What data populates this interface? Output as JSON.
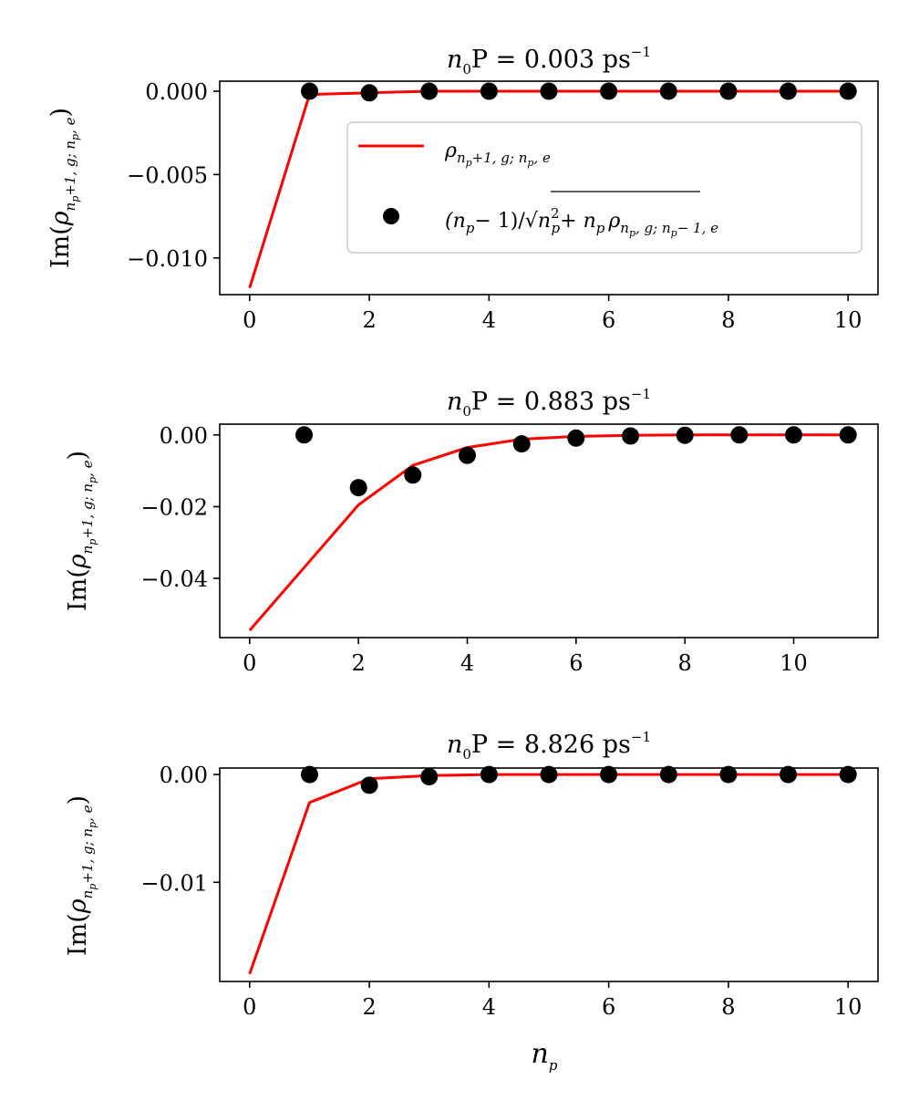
{
  "colors": {
    "line": "#ff0000",
    "marker": "#000000",
    "axis": "#000000",
    "legend_border": "#cccccc"
  },
  "x_label": {
    "base": "n",
    "sub": "p"
  },
  "y_label": {
    "lead": "Im(",
    "rho": "ρ",
    "sub_a": "n",
    "sub_b": "p",
    "sub_c": "+1, g; n",
    "sub_d": "p",
    "sub_e": ", e",
    "close": ")"
  },
  "legend": {
    "line_entry": {
      "rho": "ρ",
      "sub_a": "n",
      "sub_b": "p",
      "sub_c": "+1, g; n",
      "sub_d": "p",
      "sub_e": ", e"
    },
    "marker_entry": {
      "open": "(n",
      "sub_p1": "p",
      "mid": "− 1)/√",
      "rad_n": "n",
      "rad_sup": "2",
      "rad_sub": "p",
      "rad_plus": "+ n",
      "rad_sub2": "p",
      "rho": "ρ",
      "sub_a": "n",
      "sub_b": "p",
      "sub_c": ", g; n",
      "sub_d": "p",
      "sub_e": "− 1, e"
    }
  },
  "chart_data": [
    {
      "type": "line+scatter",
      "title": {
        "prefix": "n",
        "prefix_sub": "0",
        "mid": "P = 0.003 ps",
        "sup": "−1"
      },
      "xlim": [
        -0.5,
        10.5
      ],
      "ylim": [
        -0.0122,
        0.0006
      ],
      "xticks": [
        0,
        2,
        4,
        6,
        8,
        10
      ],
      "xtick_labels": [
        "0",
        "2",
        "4",
        "6",
        "8",
        "10"
      ],
      "yticks": [
        0.0,
        -0.005,
        -0.01
      ],
      "ytick_labels": [
        "0.000",
        "−0.005",
        "−0.010"
      ],
      "line": {
        "name": "rho_np+1,g;np,e",
        "x": [
          0,
          1,
          2,
          3,
          4,
          5,
          6,
          7,
          8,
          9,
          10
        ],
        "y": [
          -0.0118,
          -0.0002,
          -0.0001,
          0,
          0,
          0,
          0,
          0,
          0,
          0,
          0
        ]
      },
      "scatter": {
        "name": "(np-1)/sqrt(np^2+np) rho_np,g;np-1,e",
        "x": [
          1,
          2,
          3,
          4,
          5,
          6,
          7,
          8,
          9,
          10
        ],
        "y": [
          0,
          -0.0001,
          0,
          0,
          0,
          0,
          0,
          0,
          0,
          0
        ]
      },
      "legend": "top-right"
    },
    {
      "type": "line+scatter",
      "title": {
        "prefix": "n",
        "prefix_sub": "0",
        "mid": "P = 0.883 ps",
        "sup": "−1"
      },
      "xlim": [
        -0.55,
        11.55
      ],
      "ylim": [
        -0.0565,
        0.003
      ],
      "xticks": [
        0,
        2,
        4,
        6,
        8,
        10
      ],
      "xtick_labels": [
        "0",
        "2",
        "4",
        "6",
        "8",
        "10"
      ],
      "yticks": [
        0.0,
        -0.02,
        -0.04
      ],
      "ytick_labels": [
        "0.00",
        "−0.02",
        "−0.04"
      ],
      "line": {
        "name": "rho_np+1,g;np,e",
        "x": [
          0,
          1,
          2,
          3,
          4,
          5,
          6,
          7,
          8,
          9,
          10,
          11
        ],
        "y": [
          -0.0545,
          -0.037,
          -0.0195,
          -0.0085,
          -0.0035,
          -0.0012,
          -0.0004,
          -0.0001,
          0,
          0,
          0,
          0
        ]
      },
      "scatter": {
        "name": "(np-1)/sqrt(np^2+np) rho_np,g;np-1,e",
        "x": [
          1,
          2,
          3,
          4,
          5,
          6,
          7,
          8,
          9,
          10,
          11
        ],
        "y": [
          0,
          -0.0147,
          -0.0112,
          -0.0057,
          -0.0025,
          -0.0009,
          -0.0003,
          -0.0001,
          0,
          0,
          0
        ]
      }
    },
    {
      "type": "line+scatter",
      "title": {
        "prefix": "n",
        "prefix_sub": "0",
        "mid": "P = 8.826 ps",
        "sup": "−1"
      },
      "xlim": [
        -0.5,
        10.5
      ],
      "ylim": [
        -0.0192,
        0.0006
      ],
      "xticks": [
        0,
        2,
        4,
        6,
        8,
        10
      ],
      "xtick_labels": [
        "0",
        "2",
        "4",
        "6",
        "8",
        "10"
      ],
      "yticks": [
        0.0,
        -0.01
      ],
      "ytick_labels": [
        "0.00",
        "−0.01"
      ],
      "line": {
        "name": "rho_np+1,g;np,e",
        "x": [
          0,
          1,
          2,
          3,
          4,
          5,
          6,
          7,
          8,
          9,
          10
        ],
        "y": [
          -0.0185,
          -0.0026,
          -0.0004,
          -0.0001,
          0,
          0,
          0,
          0,
          0,
          0,
          0
        ]
      },
      "scatter": {
        "name": "(np-1)/sqrt(np^2+np) rho_np,g;np-1,e",
        "x": [
          1,
          2,
          3,
          4,
          5,
          6,
          7,
          8,
          9,
          10
        ],
        "y": [
          0,
          -0.001,
          -0.0002,
          0,
          0,
          0,
          0,
          0,
          0,
          0
        ]
      }
    }
  ]
}
